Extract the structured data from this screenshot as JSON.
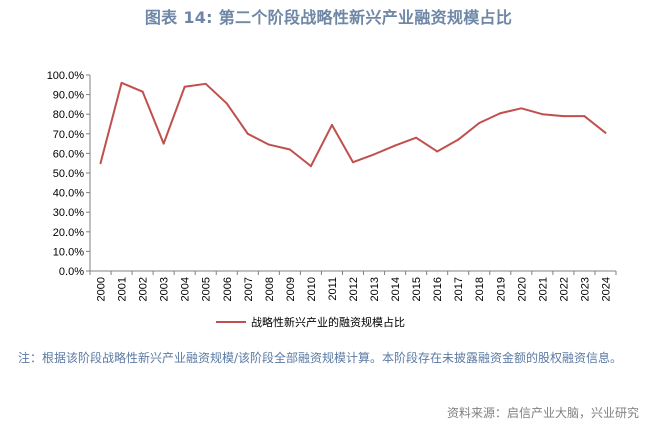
{
  "title": "图表 14: 第二个阶段战略性新兴产业融资规模占比",
  "note": "注：根据该阶段战略性新兴产业融资规模/该阶段全部融资规模计算。本阶段存在未披露融资金额的股权融资信息。",
  "source": "资料来源：启信产业大脑，兴业研究",
  "colors": {
    "series": "#c0504d",
    "axis": "#808080",
    "title": "#6f87a6"
  },
  "chart_data": {
    "type": "line",
    "title": "图表 14: 第二个阶段战略性新兴产业融资规模占比",
    "xlabel": "",
    "ylabel": "",
    "ylim": [
      0,
      100
    ],
    "y_ticks": [
      "0.0%",
      "10.0%",
      "20.0%",
      "30.0%",
      "40.0%",
      "50.0%",
      "60.0%",
      "70.0%",
      "80.0%",
      "90.0%",
      "100.0%"
    ],
    "x": [
      "2000",
      "2001",
      "2002",
      "2003",
      "2004",
      "2005",
      "2006",
      "2007",
      "2008",
      "2009",
      "2010",
      "2011",
      "2012",
      "2013",
      "2014",
      "2015",
      "2016",
      "2017",
      "2018",
      "2019",
      "2020",
      "2021",
      "2022",
      "2023",
      "2024"
    ],
    "series": [
      {
        "name": "战略性新兴产业的融资规模占比",
        "values": [
          55.0,
          96.0,
          91.5,
          65.0,
          94.0,
          95.5,
          85.5,
          70.0,
          64.5,
          62.0,
          53.5,
          74.5,
          55.5,
          59.5,
          64.0,
          68.0,
          61.0,
          67.0,
          75.5,
          80.5,
          83.0,
          80.0,
          79.0,
          79.0,
          70.5
        ]
      }
    ],
    "grid": false,
    "legend": "bottom-center"
  }
}
